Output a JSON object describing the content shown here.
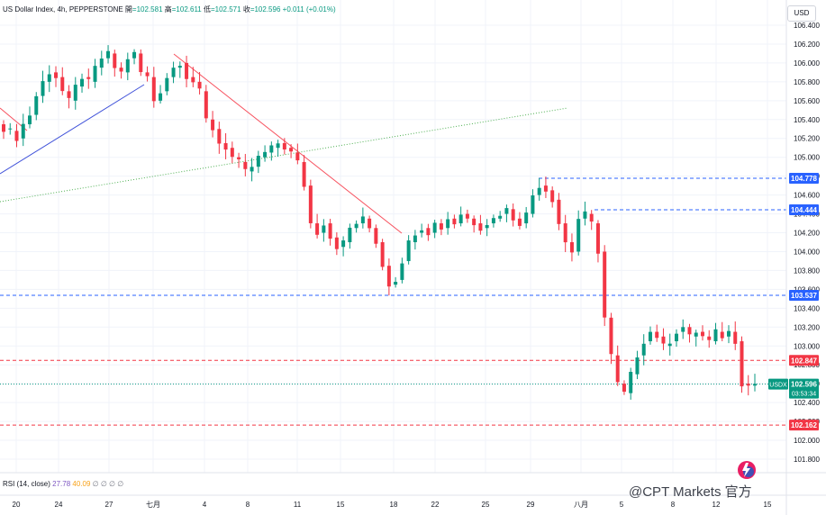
{
  "header": {
    "title": "US Dollar Index, 4h, PEPPERSTONE",
    "open_label": "開",
    "open": "=102.581",
    "high_label": "高",
    "high": "=102.611",
    "low_label": "低",
    "low": "=102.571",
    "close_label": "收",
    "close": "=102.596",
    "change": "+0.011 (+0.01%)"
  },
  "currency": "USD",
  "rsi": {
    "label": "RSI (14, close)",
    "value1": "27.78",
    "value2": "40.09",
    "extra": "∅ ∅ ∅ ∅"
  },
  "watermark": "@CPT Markets 官方",
  "colors": {
    "up": "#089981",
    "down": "#f23645",
    "support": "#2962ff",
    "resistance": "#f23645",
    "trend_down": "#f7525f",
    "trend_up": "#3f51d9",
    "trend_dotted": "#4caf50"
  },
  "chart_data": {
    "type": "candlestick",
    "title": "US Dollar Index, 4h, PEPPERSTONE",
    "y_range": [
      101.7,
      106.5
    ],
    "y_ticks": [
      "106.400",
      "106.200",
      "106.000",
      "105.800",
      "105.600",
      "105.400",
      "105.200",
      "105.000",
      "104.800",
      "104.600",
      "104.400",
      "104.200",
      "104.000",
      "103.800",
      "103.600",
      "103.400",
      "103.200",
      "103.000",
      "102.800",
      "102.600",
      "102.400",
      "102.200",
      "102.000",
      "101.800"
    ],
    "x_ticks": [
      "20",
      "24",
      "27",
      "七月",
      "4",
      "8",
      "11",
      "15",
      "18",
      "22",
      "25",
      "29",
      "八月",
      "5",
      "8",
      "12",
      "15"
    ],
    "price_levels": [
      {
        "label": "104.778",
        "value": 104.778,
        "color": "#2962ff",
        "style": "dashed"
      },
      {
        "label": "104.444",
        "value": 104.444,
        "color": "#2962ff",
        "style": "dashed"
      },
      {
        "label": "103.537",
        "value": 103.537,
        "color": "#2962ff",
        "style": "dashed"
      },
      {
        "label": "102.847",
        "value": 102.847,
        "color": "#f23645",
        "style": "dashed"
      },
      {
        "label": "102.162",
        "value": 102.162,
        "color": "#f23645",
        "style": "dashed"
      }
    ],
    "current_price": {
      "symbol": "USDX",
      "value": "102.596",
      "countdown": "03:53:34"
    },
    "trendlines": [
      {
        "from": [
          0,
          105.35
        ],
        "to": [
          18,
          104.2
        ],
        "label": "",
        "kind": "down"
      },
      {
        "from": [
          0,
          104.9
        ],
        "to": [
          19,
          105.95
        ],
        "label": "",
        "kind": "up"
      },
      {
        "from": [
          0,
          104.55
        ],
        "to": [
          80,
          105.55
        ],
        "label": "",
        "kind": "dotted"
      }
    ],
    "ohlc_path": [
      105.3,
      105.28,
      105.2,
      105.35,
      105.45,
      105.65,
      105.8,
      105.9,
      105.85,
      105.7,
      105.6,
      105.75,
      105.85,
      105.8,
      105.95,
      106.05,
      106.1,
      105.95,
      105.9,
      106.05,
      106.1,
      105.9,
      105.85,
      105.6,
      105.7,
      105.85,
      105.95,
      106.0,
      105.85,
      105.8,
      105.7,
      105.4,
      105.3,
      105.15,
      105.1,
      105.0,
      104.95,
      104.85,
      104.9,
      105.0,
      105.05,
      105.1,
      105.15,
      105.1,
      105.05,
      104.95,
      104.7,
      104.3,
      104.2,
      104.3,
      104.15,
      104.05,
      104.1,
      104.25,
      104.3,
      104.35,
      104.25,
      104.1,
      103.85,
      103.65,
      103.7,
      103.9,
      104.1,
      104.2,
      104.25,
      104.2,
      104.3,
      104.25,
      104.35,
      104.3,
      104.4,
      104.35,
      104.3,
      104.25,
      104.3,
      104.35,
      104.4,
      104.45,
      104.35,
      104.3,
      104.4,
      104.6,
      104.7,
      104.65,
      104.55,
      104.3,
      104.1,
      104.0,
      104.35,
      104.4,
      104.3,
      104.0,
      103.3,
      102.9,
      102.6,
      102.5,
      102.7,
      102.9,
      103.05,
      103.15,
      103.1,
      103.0,
      103.05,
      103.15,
      103.2,
      103.1,
      103.15,
      103.1,
      103.05,
      103.15,
      103.1,
      103.15,
      103.05,
      102.6,
      102.58,
      102.6
    ]
  }
}
